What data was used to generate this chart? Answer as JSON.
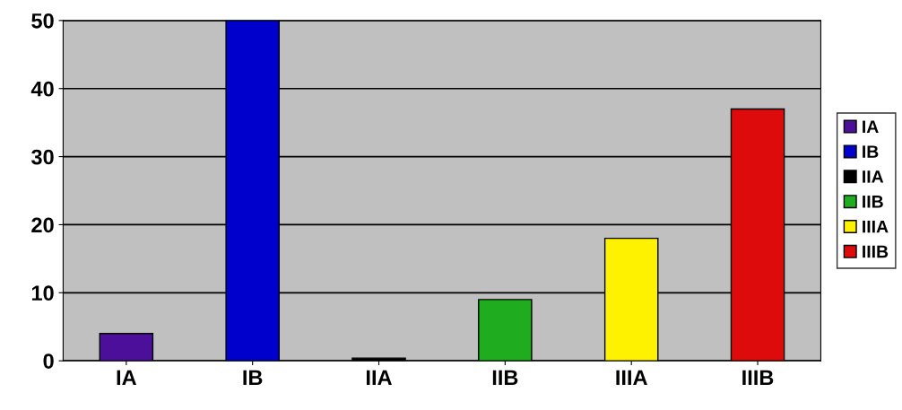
{
  "chart_data": {
    "type": "bar",
    "categories": [
      "IA",
      "IB",
      "IIA",
      "IIB",
      "IIIA",
      "IIIB"
    ],
    "series": [
      {
        "name": "IA",
        "color": "#4b0f99",
        "values": [
          4,
          null,
          null,
          null,
          null,
          null
        ]
      },
      {
        "name": "IB",
        "color": "#0000cc",
        "values": [
          null,
          50,
          null,
          null,
          null,
          null
        ]
      },
      {
        "name": "IIA",
        "color": "#000000",
        "values": [
          null,
          null,
          0.4,
          null,
          null,
          null
        ]
      },
      {
        "name": "IIB",
        "color": "#1fad1f",
        "values": [
          null,
          null,
          null,
          9,
          null,
          null
        ]
      },
      {
        "name": "IIIA",
        "color": "#fff200",
        "values": [
          null,
          null,
          null,
          null,
          18,
          null
        ]
      },
      {
        "name": "IIIB",
        "color": "#dd0b0b",
        "values": [
          null,
          null,
          null,
          null,
          null,
          37
        ]
      }
    ],
    "ylim": [
      0,
      50
    ],
    "yticks": [
      0,
      10,
      20,
      30,
      40,
      50
    ],
    "grid": "y",
    "legend": "right"
  }
}
